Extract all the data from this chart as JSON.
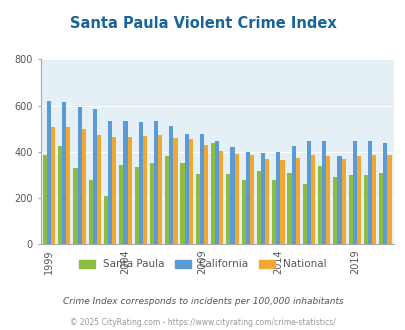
{
  "title": "Santa Paula Violent Crime Index",
  "years": [
    1999,
    2000,
    2001,
    2002,
    2003,
    2004,
    2005,
    2006,
    2007,
    2008,
    2009,
    2010,
    2011,
    2012,
    2013,
    2014,
    2015,
    2016,
    2017,
    2018,
    2019,
    2020,
    2021
  ],
  "santa_paula": [
    385,
    425,
    330,
    280,
    210,
    345,
    335,
    350,
    380,
    350,
    305,
    440,
    305,
    280,
    315,
    280,
    310,
    260,
    340,
    290,
    300,
    300,
    310
  ],
  "california": [
    620,
    615,
    595,
    585,
    535,
    535,
    530,
    535,
    510,
    475,
    475,
    445,
    420,
    400,
    395,
    400,
    425,
    445,
    445,
    380,
    445,
    445,
    440
  ],
  "national": [
    506,
    506,
    500,
    474,
    466,
    464,
    469,
    474,
    458,
    455,
    430,
    405,
    390,
    387,
    368,
    366,
    373,
    387,
    383,
    369,
    380,
    387,
    387
  ],
  "colors": {
    "santa_paula": "#8cbd3f",
    "california": "#5b9bd5",
    "national": "#f0a830"
  },
  "bg_color": "#e4f0f5",
  "ylim": [
    0,
    800
  ],
  "yticks": [
    0,
    200,
    400,
    600,
    800
  ],
  "xtick_labels": [
    "1999",
    "2004",
    "2009",
    "2014",
    "2019"
  ],
  "xtick_positions": [
    0,
    5,
    10,
    15,
    20
  ],
  "subtitle": "Crime Index corresponds to incidents per 100,000 inhabitants",
  "footer": "© 2025 CityRating.com - https://www.cityrating.com/crime-statistics/",
  "legend_labels": [
    "Santa Paula",
    "California",
    "National"
  ],
  "title_color": "#1a6496",
  "subtitle_color": "#555555",
  "footer_color": "#999999",
  "figsize": [
    4.06,
    3.3
  ],
  "dpi": 100
}
